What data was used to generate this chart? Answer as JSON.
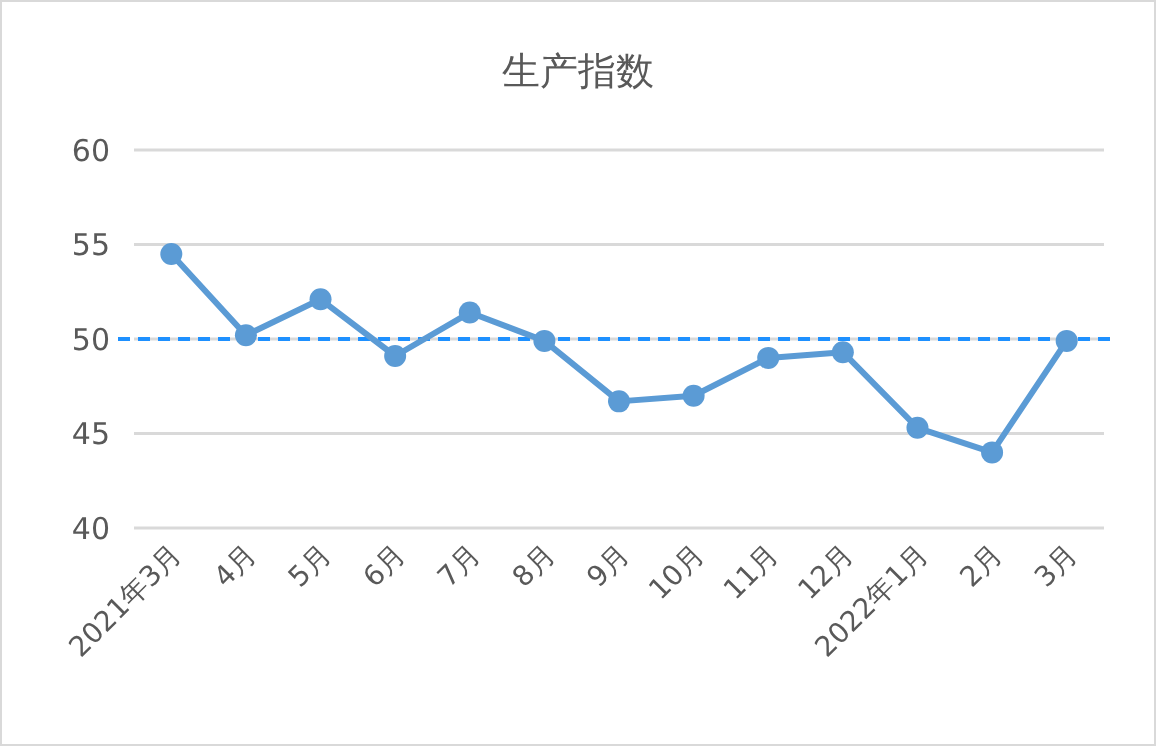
{
  "chart_data": {
    "type": "line",
    "title": "生产指数",
    "categories": [
      "2021年3月",
      "4月",
      "5月",
      "6月",
      "7月",
      "8月",
      "9月",
      "10月",
      "11月",
      "12月",
      "2022年1月",
      "2月",
      "3月"
    ],
    "series": [
      {
        "color": "#5b9bd5",
        "values": [
          54.5,
          50.2,
          52.1,
          49.1,
          51.4,
          49.9,
          46.7,
          47.0,
          49.0,
          49.3,
          45.3,
          44.0,
          49.9
        ]
      }
    ],
    "ylim": [
      40,
      60
    ],
    "yticks": [
      40,
      45,
      50,
      55,
      60
    ],
    "grid": "y",
    "marker": "circle",
    "line_style": "solid",
    "ref_lines": [
      {
        "axis": "y",
        "value": 50,
        "label": null,
        "color": "#1e90ff",
        "line_style": "dashed"
      }
    ]
  }
}
